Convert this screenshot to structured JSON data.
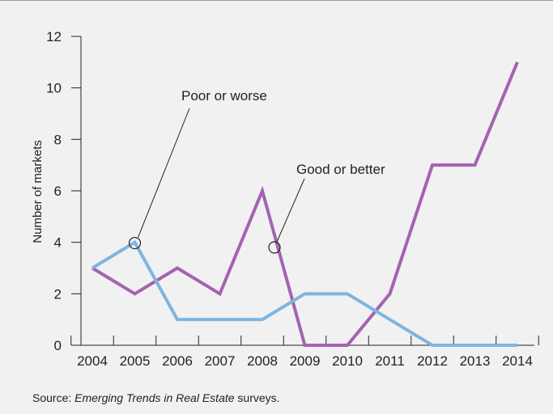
{
  "chart_data": {
    "type": "line",
    "title": "",
    "xlabel": "",
    "ylabel": "Number of markets",
    "x": [
      2004,
      2005,
      2006,
      2007,
      2008,
      2009,
      2010,
      2011,
      2012,
      2013,
      2014
    ],
    "x_tick_labels": [
      "2004",
      "2005",
      "2006",
      "2007",
      "2008",
      "2009",
      "2010",
      "2011",
      "2012",
      "2013",
      "2014"
    ],
    "ylim": [
      0,
      12
    ],
    "y_ticks": [
      0,
      2,
      4,
      6,
      8,
      10,
      12
    ],
    "y_tick_labels": [
      "0",
      "2",
      "4",
      "6",
      "8",
      "10",
      "12"
    ],
    "grid": false,
    "series": [
      {
        "name": "Good or better",
        "color": "#a463b0",
        "points": [
          [
            2004,
            3
          ],
          [
            2005,
            2
          ],
          [
            2006,
            3
          ],
          [
            2007,
            2
          ],
          [
            2008,
            6
          ],
          [
            2009,
            0
          ],
          [
            2010,
            0
          ],
          [
            2011,
            2
          ],
          [
            2012,
            7
          ],
          [
            2013,
            7
          ],
          [
            2014,
            11
          ]
        ]
      },
      {
        "name": "Poor or worse",
        "color": "#7fb4e0",
        "points": [
          [
            2004,
            3
          ],
          [
            2005,
            4
          ],
          [
            2006,
            1
          ],
          [
            2007,
            1
          ],
          [
            2008,
            1
          ],
          [
            2009,
            2
          ],
          [
            2010,
            2
          ],
          [
            2011,
            1
          ],
          [
            2012,
            0
          ],
          [
            2013,
            0
          ],
          [
            2014,
            0
          ]
        ]
      }
    ],
    "annotations": [
      {
        "text": "Poor or worse",
        "series": "Poor or worse",
        "at": [
          2005,
          4
        ]
      },
      {
        "text": "Good or better",
        "series": "Good or better",
        "at": [
          2008.7,
          3.8
        ]
      }
    ]
  },
  "source": {
    "prefix": "Source: ",
    "title": "Emerging Trends in Real Estate",
    "suffix": " surveys."
  }
}
